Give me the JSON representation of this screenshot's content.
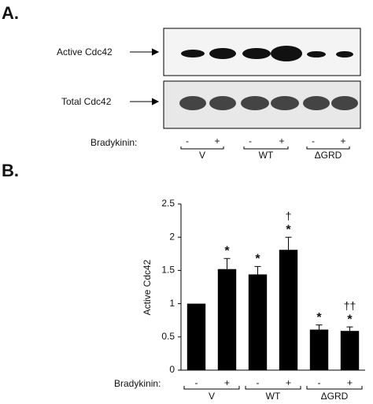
{
  "panel_a": {
    "label": "A.",
    "rows": [
      "Active Cdc42",
      "Total Cdc42"
    ],
    "treatment": "Bradykinin:",
    "lanes": [
      "-",
      "+",
      "-",
      "+",
      "-",
      "+"
    ],
    "groups": [
      "V",
      "WT",
      "ΔGRD"
    ]
  },
  "chart_data": {
    "type": "bar",
    "panel_label": "B.",
    "ylabel": "Active Cdc42",
    "x_prefix": "Bradykinin:",
    "categories": [
      "-",
      "+",
      "-",
      "+",
      "-",
      "+"
    ],
    "groups": [
      "V",
      "WT",
      "ΔGRD"
    ],
    "values": [
      1,
      1.52,
      1.44,
      1.81,
      0.61,
      0.59
    ],
    "errors": [
      null,
      0.16,
      0.12,
      0.19,
      0.07,
      0.06
    ],
    "significance": [
      null,
      "*",
      "*",
      "*",
      "*",
      "*"
    ],
    "significance2": [
      null,
      null,
      null,
      "†",
      null,
      "††"
    ],
    "color": "#000000",
    "ylim": [
      0,
      2.5
    ],
    "yticks": [
      0,
      0.5,
      1,
      1.5,
      2,
      2.5
    ]
  }
}
